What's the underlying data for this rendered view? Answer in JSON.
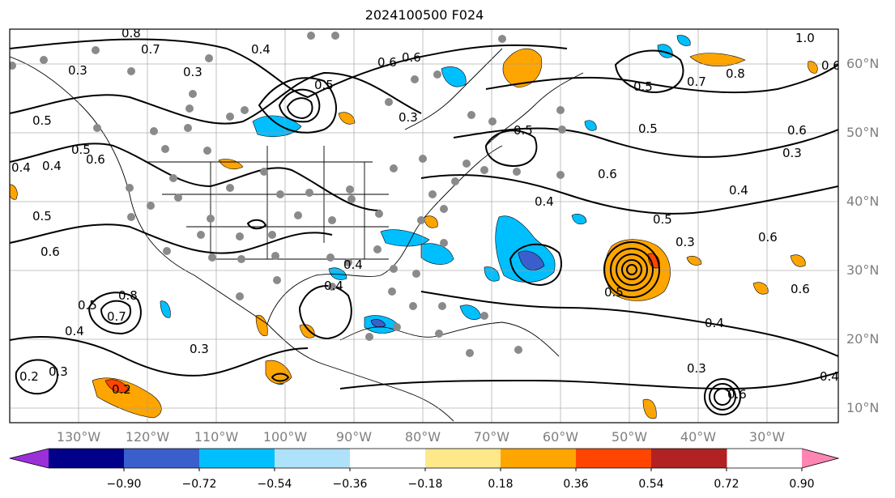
{
  "title": "2024100500 F024",
  "lat_labels": [
    "60°N",
    "50°N",
    "40°N",
    "30°N",
    "20°N",
    "10°N"
  ],
  "lon_labels": [
    "130°W",
    "120°W",
    "110°W",
    "100°W",
    "90°W",
    "80°W",
    "70°W",
    "60°W",
    "50°W",
    "40°W",
    "30°W"
  ],
  "colorbar": {
    "ticks": [
      "−0.90",
      "−0.72",
      "−0.54",
      "−0.36",
      "−0.18",
      "0.18",
      "0.36",
      "0.54",
      "0.72",
      "0.90"
    ],
    "colors": [
      "#9b30d9",
      "#00008b",
      "#3a5fcd",
      "#00bfff",
      "#aee2fb",
      "#ffffff",
      "#ffe88a",
      "#ffa500",
      "#ff4500",
      "#b22222",
      "#ff85b3"
    ]
  },
  "contour_labels": [
    "1.0",
    "0.8",
    "0.7",
    "0.6",
    "0.5",
    "0.5",
    "0.6",
    "0.3",
    "0.4",
    "0.4",
    "0.5",
    "0.6",
    "0.5",
    "0.6",
    "0.3",
    "0.4",
    "0.6",
    "0.4",
    "0.5",
    "0.6",
    "0.4",
    "0.5",
    "0.7",
    "0.3",
    "0.3",
    "0.2",
    "0.4",
    "0.8",
    "0.3",
    "0.8",
    "0.6",
    "0.5",
    "0.4",
    "0.4",
    "0.3",
    "0.6",
    "0.2",
    "0.3",
    "0.7",
    "0.5",
    "0.6",
    "0.4",
    "0.5",
    "0.5",
    "0.4",
    "0.6",
    "0.3"
  ]
}
